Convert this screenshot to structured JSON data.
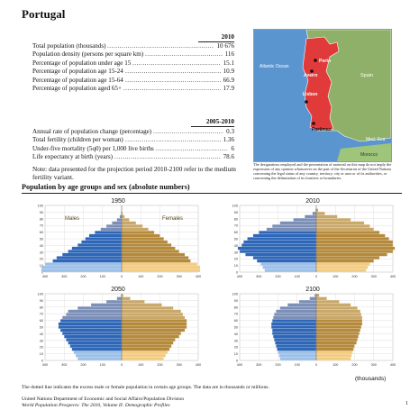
{
  "header": {
    "country": "Portugal"
  },
  "indicators_2010": {
    "year_label": "2010",
    "rows": [
      {
        "label": "Total population (thousands)",
        "value": "10 676"
      },
      {
        "label": "Population density (persons per square km)",
        "value": "116"
      },
      {
        "label": "Percentage of population under age 15",
        "value": "15.1"
      },
      {
        "label": "Percentage of population age 15-24",
        "value": "10.9"
      },
      {
        "label": "Percentage of population age 15-64",
        "value": "66.9"
      },
      {
        "label": "Percentage of population aged 65+",
        "value": "17.9"
      }
    ]
  },
  "indicators_2005_2010": {
    "period_label": "2005-2010",
    "rows": [
      {
        "label": "Annual rate of population change (percentage)",
        "value": "0.3"
      },
      {
        "label": "Total fertility (children per woman)",
        "value": "1.36"
      },
      {
        "label": "Under-five mortality (5q0) per 1,000 live births",
        "value": "6"
      },
      {
        "label": "Life expectancy at birth (years)",
        "value": "78.6"
      }
    ]
  },
  "note": "Note: data presented for the projection period 2010-2100 refer to the medium fertility variant.",
  "map": {
    "labels": {
      "atlantic": "Atlantic Ocean",
      "spain": "Spain",
      "porto": "Porto",
      "aveiro": "Aveiro",
      "lisbon": "Lisbon",
      "portimao": "Portimao",
      "medsea": "Med. Sea",
      "morocco": "Morocco"
    },
    "colors": {
      "sea": "#5b95cf",
      "portugal": "#e03a3a",
      "land": "#8fb068",
      "morocco": "#9fc57a"
    },
    "caption": "The designations employed and the presentation of material on this map do not imply the expression of any opinion whatsoever on the part of the Secretariat of the United Nations concerning the legal status of any country, territory, city or area or of its authorities, or concerning the delimitation of its frontiers or boundaries."
  },
  "section": {
    "title": "Population by age groups and sex (absolute numbers)"
  },
  "pyramid_labels": {
    "males": "Males",
    "females": "Females",
    "unit": "(thousands)"
  },
  "colors": {
    "male_dark": "#2f67b8",
    "male_light": "#9dc0e8",
    "male_old": "#7c8fb7",
    "female_dark": "#b58a3c",
    "female_light": "#f2cc82",
    "female_old": "#c9a86a",
    "grid": "#d8d8d8"
  },
  "chart_data": [
    {
      "type": "bar",
      "title": "1950",
      "age_groups": [
        "0-4",
        "5-9",
        "10-14",
        "15-19",
        "20-24",
        "25-29",
        "30-34",
        "35-39",
        "40-44",
        "45-49",
        "50-54",
        "55-59",
        "60-64",
        "65-69",
        "70-74",
        "75-79",
        "80-84",
        "85-89",
        "90-94",
        "95-99",
        "100+"
      ],
      "x_ticks": [
        400,
        300,
        200,
        100,
        0,
        100,
        200,
        300,
        400
      ],
      "xlim": [
        -400,
        400
      ],
      "y_ticks": [
        0,
        10,
        20,
        30,
        40,
        50,
        60,
        70,
        80,
        90,
        100
      ],
      "series": [
        {
          "name": "Males",
          "values": [
            420,
            420,
            400,
            360,
            340,
            310,
            280,
            260,
            230,
            210,
            190,
            170,
            140,
            110,
            80,
            50,
            25,
            10,
            3,
            1,
            0
          ]
        },
        {
          "name": "Females",
          "values": [
            410,
            410,
            395,
            360,
            350,
            330,
            300,
            280,
            260,
            240,
            220,
            200,
            170,
            140,
            110,
            75,
            40,
            15,
            5,
            1,
            0
          ]
        }
      ]
    },
    {
      "type": "bar",
      "title": "2010",
      "age_groups": [
        "0-4",
        "5-9",
        "10-14",
        "15-19",
        "20-24",
        "25-29",
        "30-34",
        "35-39",
        "40-44",
        "45-49",
        "50-54",
        "55-59",
        "60-64",
        "65-69",
        "70-74",
        "75-79",
        "80-84",
        "85-89",
        "90-94",
        "95-99",
        "100+"
      ],
      "x_ticks": [
        400,
        300,
        200,
        100,
        0,
        100,
        200,
        300,
        400
      ],
      "xlim": [
        -400,
        400
      ],
      "y_ticks": [
        0,
        10,
        20,
        30,
        40,
        50,
        60,
        70,
        80,
        90,
        100
      ],
      "series": [
        {
          "name": "Males",
          "values": [
            270,
            280,
            290,
            310,
            330,
            370,
            400,
            410,
            390,
            380,
            360,
            330,
            300,
            260,
            230,
            190,
            120,
            60,
            20,
            4,
            0
          ]
        },
        {
          "name": "Females",
          "values": [
            260,
            270,
            280,
            300,
            330,
            370,
            400,
            410,
            400,
            400,
            380,
            360,
            330,
            300,
            280,
            250,
            180,
            110,
            45,
            10,
            1
          ]
        }
      ]
    },
    {
      "type": "bar",
      "title": "2050",
      "age_groups": [
        "0-4",
        "5-9",
        "10-14",
        "15-19",
        "20-24",
        "25-29",
        "30-34",
        "35-39",
        "40-44",
        "45-49",
        "50-54",
        "55-59",
        "60-64",
        "65-69",
        "70-74",
        "75-79",
        "80-84",
        "85-89",
        "90-94",
        "95-99",
        "100+"
      ],
      "x_ticks": [
        400,
        300,
        200,
        100,
        0,
        100,
        200,
        300,
        400
      ],
      "xlim": [
        -400,
        400
      ],
      "y_ticks": [
        0,
        10,
        20,
        30,
        40,
        50,
        60,
        70,
        80,
        90,
        100
      ],
      "series": [
        {
          "name": "Males",
          "values": [
            230,
            240,
            250,
            260,
            270,
            280,
            290,
            300,
            310,
            320,
            330,
            330,
            320,
            310,
            290,
            280,
            230,
            160,
            80,
            25,
            4
          ]
        },
        {
          "name": "Females",
          "values": [
            220,
            230,
            240,
            250,
            260,
            270,
            280,
            300,
            310,
            330,
            340,
            340,
            340,
            330,
            320,
            310,
            270,
            210,
            120,
            45,
            8
          ]
        }
      ]
    },
    {
      "type": "bar",
      "title": "2100",
      "age_groups": [
        "0-4",
        "5-9",
        "10-14",
        "15-19",
        "20-24",
        "25-29",
        "30-34",
        "35-39",
        "40-44",
        "45-49",
        "50-54",
        "55-59",
        "60-64",
        "65-69",
        "70-74",
        "75-79",
        "80-84",
        "85-89",
        "90-94",
        "95-99",
        "100+"
      ],
      "x_ticks": [
        400,
        300,
        200,
        100,
        0,
        100,
        200,
        300,
        400
      ],
      "xlim": [
        -400,
        400
      ],
      "y_ticks": [
        0,
        10,
        20,
        30,
        40,
        50,
        60,
        70,
        80,
        90,
        100
      ],
      "series": [
        {
          "name": "Males",
          "values": [
            190,
            195,
            200,
            205,
            210,
            215,
            220,
            225,
            230,
            230,
            235,
            235,
            230,
            225,
            220,
            210,
            190,
            150,
            90,
            35,
            8
          ]
        },
        {
          "name": "Females",
          "values": [
            180,
            185,
            190,
            195,
            200,
            210,
            215,
            220,
            225,
            230,
            235,
            240,
            240,
            240,
            235,
            230,
            215,
            180,
            120,
            55,
            15
          ]
        }
      ]
    }
  ],
  "footnote": "The dotted line indicates the excess male or female population in certain age groups. The data are in thousands or millions.",
  "footer": {
    "line1": "United Nations Department of Economic and Social Affairs/Population Division",
    "line2": "World Population Prospects: The 2010, Volume II: Demographic Profiles",
    "page_number": "1"
  }
}
